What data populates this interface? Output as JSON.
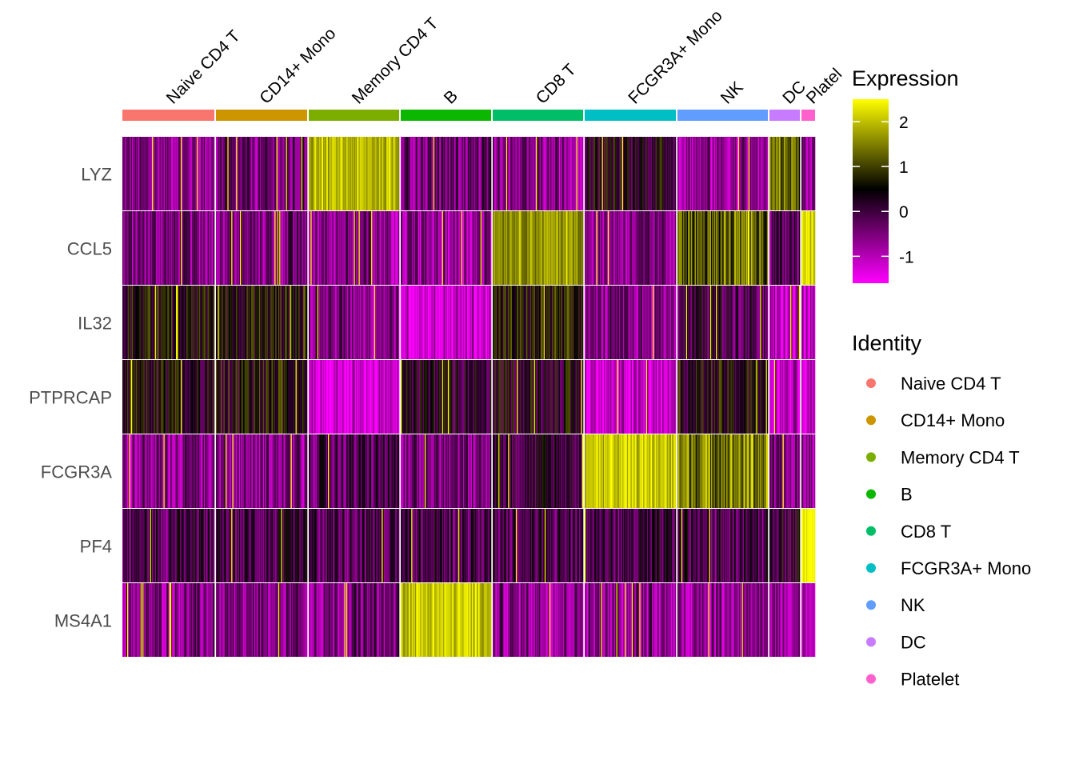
{
  "chart_data": {
    "type": "heatmap",
    "genes": [
      "LYZ",
      "CCL5",
      "IL32",
      "PTPRCAP",
      "FCGR3A",
      "PF4",
      "MS4A1"
    ],
    "clusters": [
      {
        "name": "Naive CD4 T",
        "color": "#F8766D",
        "cells": 115
      },
      {
        "name": "CD14+ Mono",
        "color": "#CD9600",
        "cells": 114
      },
      {
        "name": "Memory CD4 T",
        "color": "#7CAE00",
        "cells": 113
      },
      {
        "name": "B",
        "color": "#0CB702",
        "cells": 113
      },
      {
        "name": "CD8 T",
        "color": "#00BE67",
        "cells": 113
      },
      {
        "name": "FCGR3A+ Mono",
        "color": "#00BFC4",
        "cells": 114
      },
      {
        "name": "NK",
        "color": "#619CFF",
        "cells": 113
      },
      {
        "name": "DC",
        "color": "#C77CFF",
        "cells": 38
      },
      {
        "name": "Platelet",
        "color": "#FF61CC",
        "cells": 17
      }
    ],
    "cluster_label_display": [
      "Naive CD4 T",
      "CD14+ Mono",
      "Memory CD4 T",
      "B",
      "CD8 T",
      "FCGR3A+ Mono",
      "NK",
      "DC",
      "Platel"
    ],
    "mean_expression": [
      [
        -0.6,
        -0.5,
        1.9,
        -0.4,
        -0.7,
        0.3,
        -0.7,
        1.3,
        -0.6
      ],
      [
        -0.5,
        -0.5,
        -0.6,
        -0.7,
        1.7,
        -0.6,
        1.2,
        -0.3,
        2.2
      ],
      [
        0.5,
        0.6,
        -0.5,
        -1.2,
        0.6,
        -0.6,
        0.0,
        -1.0,
        -1.1
      ],
      [
        0.4,
        0.6,
        -1.3,
        0.2,
        0.3,
        -1.2,
        0.4,
        -1.1,
        -1.2
      ],
      [
        -0.6,
        -0.6,
        -0.2,
        -0.5,
        0.1,
        2.1,
        1.5,
        -0.6,
        -0.7
      ],
      [
        -0.1,
        -0.1,
        -0.1,
        -0.1,
        -0.1,
        -0.1,
        -0.1,
        0.2,
        2.5
      ],
      [
        -0.6,
        -0.6,
        -0.5,
        2.1,
        -0.6,
        -0.6,
        -0.6,
        -0.6,
        -0.6
      ]
    ],
    "color_scale": {
      "stops": [
        [
          -1.6,
          "#FF00FF"
        ],
        [
          0.5,
          "#000000"
        ],
        [
          2.5,
          "#FFFF00"
        ]
      ],
      "limits": [
        -1.6,
        2.5
      ],
      "ticks": [
        "2",
        "1",
        "0",
        "-1"
      ],
      "tick_values": [
        2,
        1,
        0,
        -1
      ]
    },
    "legend_titles": {
      "expression": "Expression",
      "identity": "Identity"
    }
  }
}
